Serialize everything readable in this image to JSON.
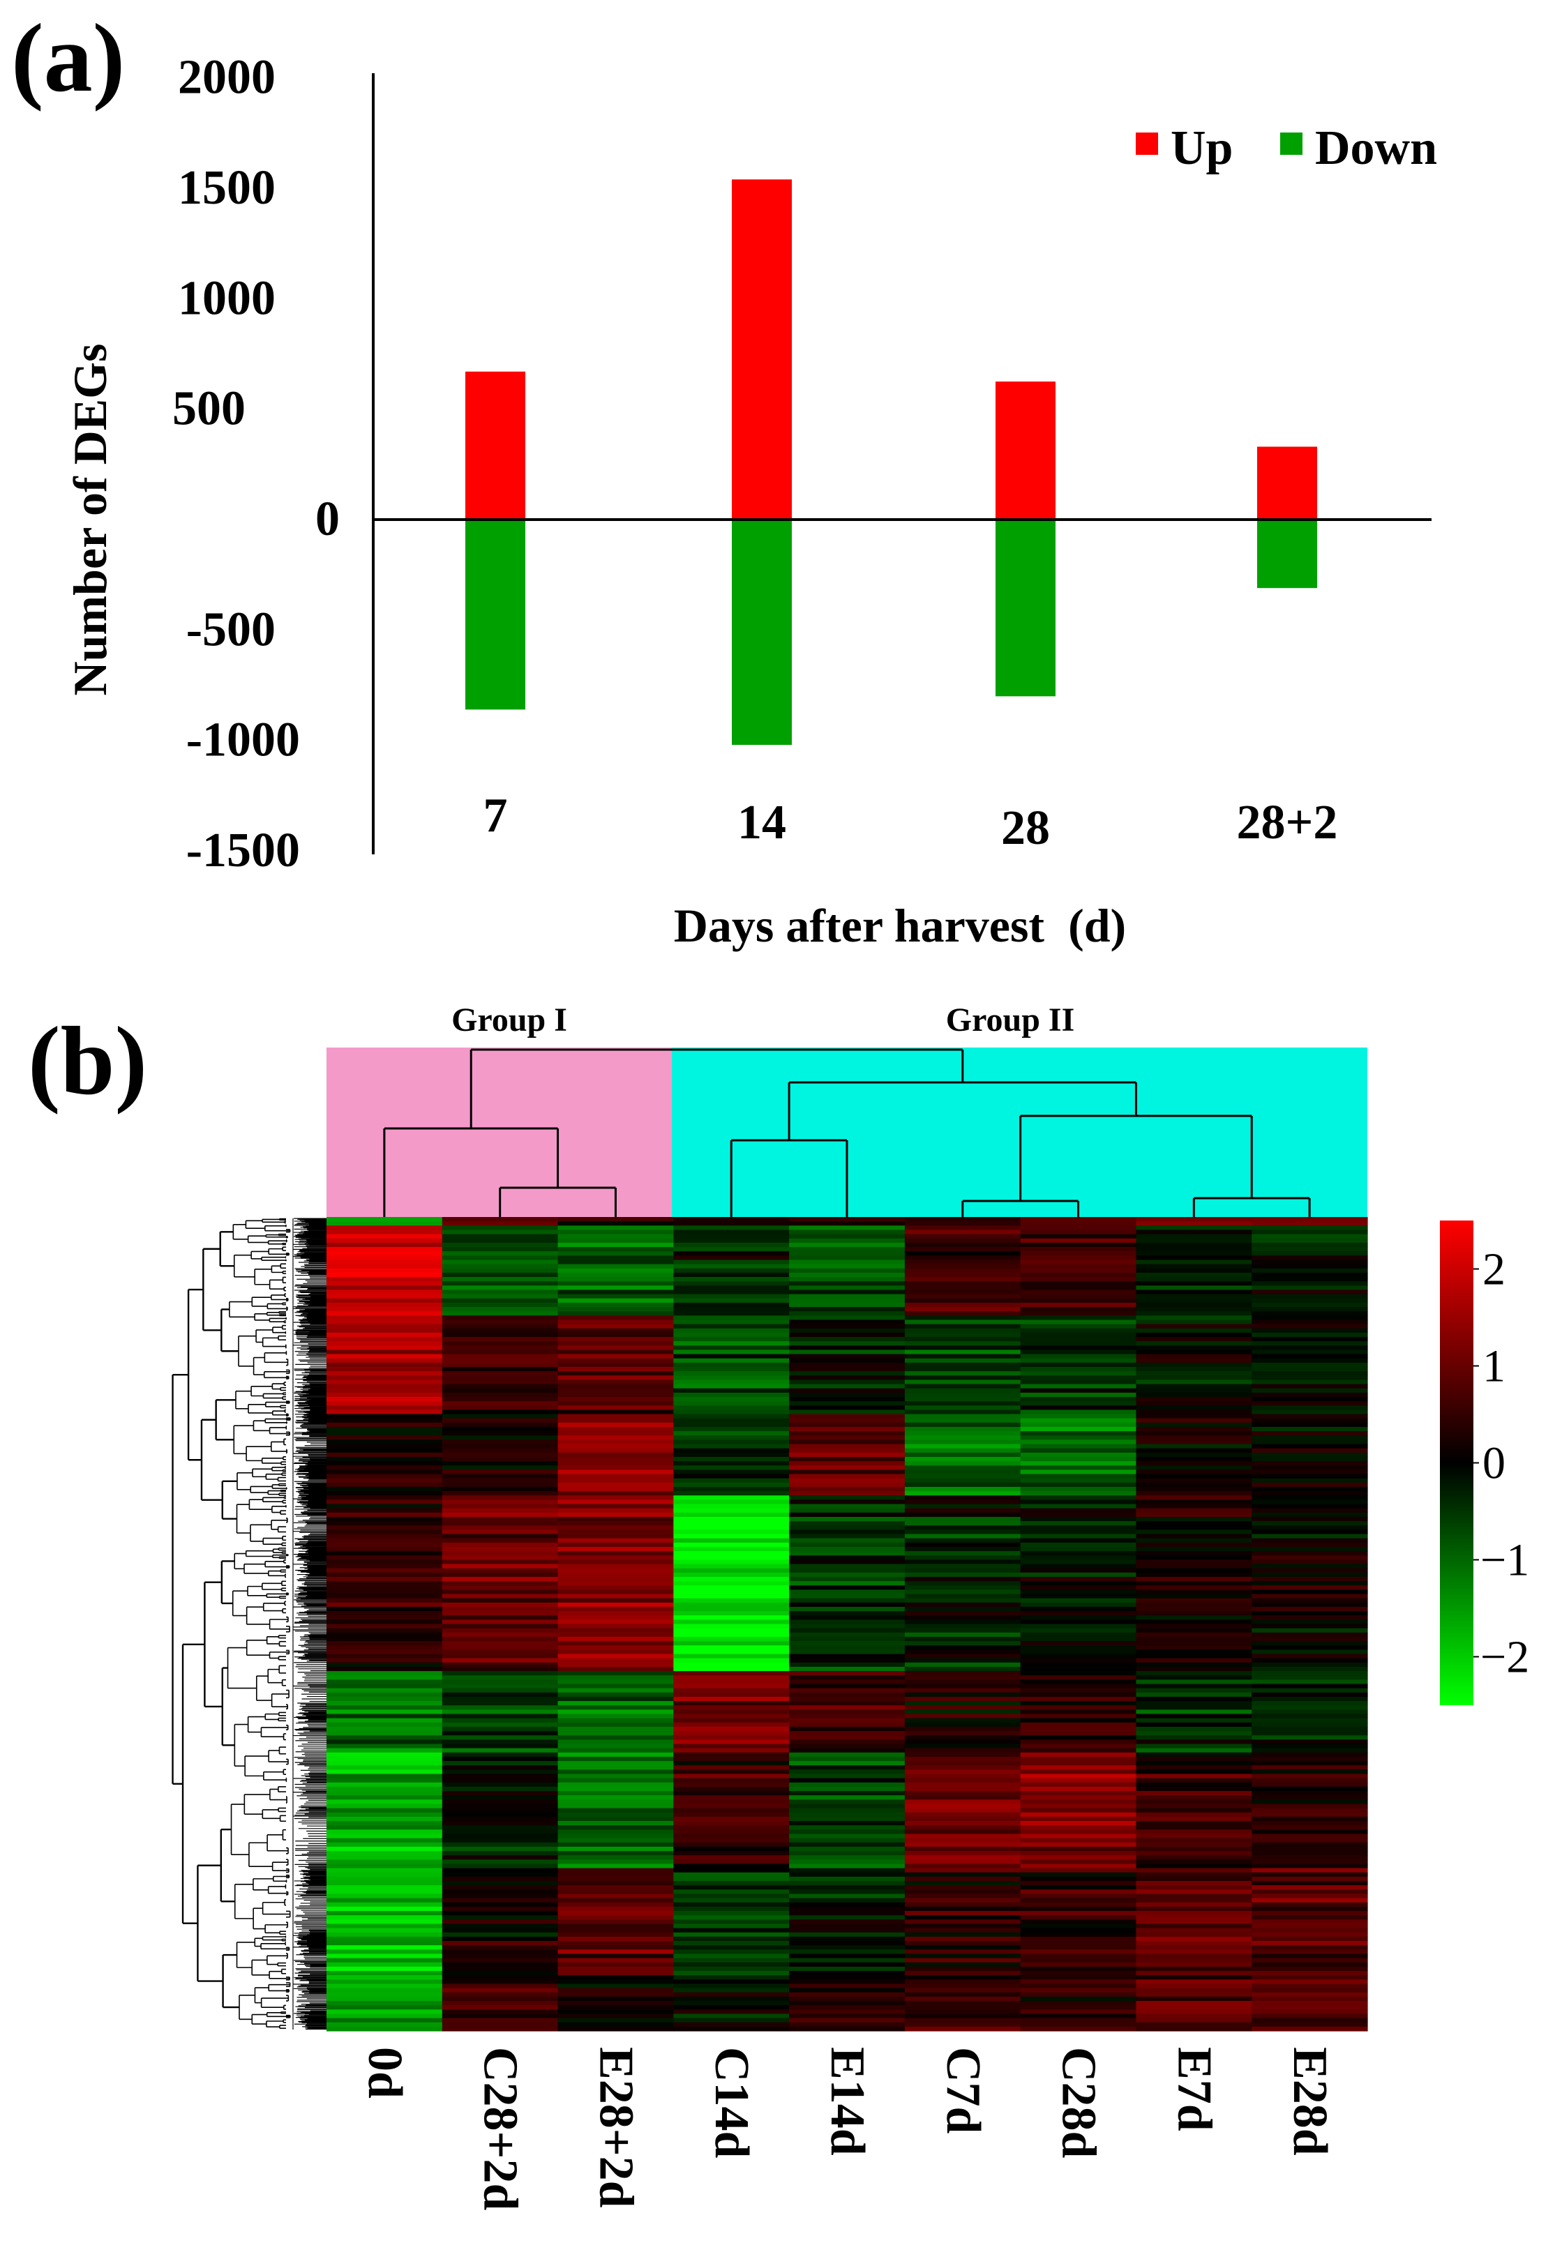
{
  "panel_a": {
    "label": "(a)"
  },
  "panel_b": {
    "label": "(b)",
    "group_labels": [
      "Group I",
      "Group II"
    ],
    "colors": {
      "group1": "#f49ac9",
      "group2": "#00f5e1",
      "high": "#ff0000",
      "mid": "#000000",
      "low": "#00ff00"
    }
  },
  "chart_data": [
    {
      "type": "bar",
      "title": "",
      "xlabel": "Days after harvest  (d)",
      "ylabel": "Number of DEGs",
      "categories": [
        "7",
        "14",
        "28",
        "28+2"
      ],
      "series": [
        {
          "name": "Up",
          "color": "#ff0000",
          "values": [
            670,
            1540,
            625,
            330
          ]
        },
        {
          "name": "Down",
          "color": "#00a000",
          "values": [
            -860,
            -1020,
            -800,
            -310
          ]
        }
      ],
      "yticks": [
        "2000",
        "1500",
        "1000",
        "500",
        "0",
        "-500",
        "-1000",
        "-1500"
      ],
      "ylim": [
        -1500,
        2000
      ],
      "legend_position": "top-right",
      "grid": false
    },
    {
      "type": "heatmap",
      "columns": [
        "0d",
        "C28+2d",
        "E28+2d",
        "C14d",
        "E14d",
        "C7d",
        "C28d",
        "E7d",
        "E28d"
      ],
      "colorbar_ticks": [
        "2",
        "1",
        "0",
        "−1",
        "−2"
      ],
      "colorbar_range": [
        -2.5,
        2.5
      ],
      "groups": [
        {
          "name": "Group I",
          "columns": [
            "0d",
            "C28+2d",
            "E28+2d"
          ]
        },
        {
          "name": "Group II",
          "columns": [
            "C14d",
            "E14d",
            "C7d",
            "C28d",
            "E7d",
            "E28d"
          ]
        }
      ],
      "blocks": [
        {
          "rows": "1-12%",
          "values": [
            2.0,
            -0.7,
            -0.9,
            -0.3,
            -0.9,
            0.5,
            0.6,
            -0.3,
            -0.3
          ]
        },
        {
          "rows": "12-24%",
          "values": [
            1.6,
            0.5,
            0.8,
            -0.8,
            -0.2,
            -0.6,
            -0.5,
            -0.1,
            -0.1
          ]
        },
        {
          "rows": "24-34%",
          "values": [
            0.2,
            0.2,
            1.4,
            -0.6,
            0.9,
            -1.1,
            -1.1,
            0.1,
            0.0
          ]
        },
        {
          "rows": "34-56%",
          "values": [
            0.4,
            1.0,
            1.3,
            -2.3,
            -0.5,
            -0.3,
            -0.2,
            0.2,
            0.1
          ]
        },
        {
          "rows": "56-66%",
          "values": [
            -1.0,
            -0.6,
            -1.0,
            1.1,
            0.6,
            0.2,
            0.3,
            -0.4,
            -0.3
          ]
        },
        {
          "rows": "66-80%",
          "values": [
            -1.6,
            -0.3,
            -1.0,
            0.5,
            -0.7,
            1.1,
            1.2,
            0.5,
            0.4
          ]
        },
        {
          "rows": "80-93%",
          "values": [
            -1.9,
            0.2,
            0.9,
            -0.6,
            -0.2,
            0.4,
            0.4,
            0.9,
            0.9
          ]
        },
        {
          "rows": "93-100%",
          "values": [
            -1.5,
            0.6,
            0.1,
            0.0,
            0.3,
            0.6,
            0.4,
            0.8,
            0.7
          ]
        }
      ]
    }
  ]
}
